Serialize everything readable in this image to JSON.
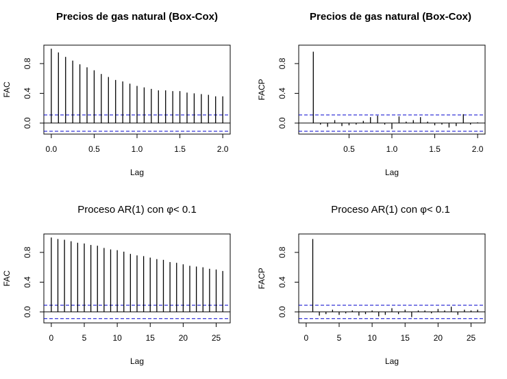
{
  "chart_data": [
    {
      "type": "bar",
      "kind": "acf",
      "title": "Precios de gas natural (Box-Cox)",
      "title_style": "bold",
      "xlabel": "Lag",
      "ylabel": "FAC",
      "x_ticks": [
        "0.0",
        "0.5",
        "1.0",
        "1.5",
        "2.0"
      ],
      "y_ticks": [
        "0.0",
        "0.4",
        "0.8"
      ],
      "xlim": [
        0,
        2.0
      ],
      "ylim": [
        -0.1,
        1.0
      ],
      "lags": [
        0.0,
        0.0833,
        0.1667,
        0.25,
        0.3333,
        0.4167,
        0.5,
        0.5833,
        0.6667,
        0.75,
        0.8333,
        0.9167,
        1.0,
        1.0833,
        1.1667,
        1.25,
        1.3333,
        1.4167,
        1.5,
        1.5833,
        1.6667,
        1.75,
        1.8333,
        1.9167,
        2.0
      ],
      "values": [
        1.0,
        0.95,
        0.89,
        0.84,
        0.79,
        0.75,
        0.71,
        0.66,
        0.62,
        0.58,
        0.56,
        0.53,
        0.5,
        0.48,
        0.46,
        0.44,
        0.44,
        0.43,
        0.43,
        0.41,
        0.4,
        0.39,
        0.38,
        0.36,
        0.36
      ],
      "conf_limit": 0.11,
      "grid": false
    },
    {
      "type": "bar",
      "kind": "pacf",
      "title": "Precios de gas natural (Box-Cox)",
      "title_style": "bold",
      "xlabel": "Lag",
      "ylabel": "FACP",
      "x_ticks": [
        "0.5",
        "1.0",
        "1.5",
        "2.0"
      ],
      "y_ticks": [
        "0.0",
        "0.4",
        "0.8"
      ],
      "xlim": [
        0,
        2.0
      ],
      "ylim": [
        -0.1,
        1.0
      ],
      "lags": [
        0.0833,
        0.1667,
        0.25,
        0.3333,
        0.4167,
        0.5,
        0.5833,
        0.6667,
        0.75,
        0.8333,
        0.9167,
        1.0,
        1.0833,
        1.1667,
        1.25,
        1.3333,
        1.4167,
        1.5,
        1.5833,
        1.6667,
        1.75,
        1.8333,
        1.9167,
        2.0
      ],
      "values": [
        0.96,
        -0.02,
        -0.05,
        0.04,
        -0.04,
        -0.03,
        -0.02,
        0.03,
        0.08,
        0.1,
        -0.02,
        -0.08,
        0.09,
        0.02,
        0.04,
        0.08,
        0.02,
        -0.03,
        -0.02,
        -0.06,
        -0.04,
        0.12,
        -0.02,
        0.01
      ],
      "conf_limit": 0.11,
      "grid": false
    },
    {
      "type": "bar",
      "kind": "acf",
      "title": "Proceso AR(1) con φ< 0.1",
      "title_style": "plain",
      "xlabel": "Lag",
      "ylabel": "FAC",
      "x_ticks": [
        "0",
        "5",
        "10",
        "15",
        "20",
        "25"
      ],
      "y_ticks": [
        "0.0",
        "0.4",
        "0.8"
      ],
      "xlim": [
        0,
        26
      ],
      "ylim": [
        -0.1,
        1.0
      ],
      "lags": [
        0,
        1,
        2,
        3,
        4,
        5,
        6,
        7,
        8,
        9,
        10,
        11,
        12,
        13,
        14,
        15,
        16,
        17,
        18,
        19,
        20,
        21,
        22,
        23,
        24,
        25,
        26
      ],
      "values": [
        1.0,
        0.98,
        0.97,
        0.95,
        0.93,
        0.92,
        0.9,
        0.89,
        0.86,
        0.84,
        0.83,
        0.81,
        0.78,
        0.76,
        0.75,
        0.73,
        0.71,
        0.7,
        0.67,
        0.66,
        0.64,
        0.62,
        0.61,
        0.6,
        0.58,
        0.57,
        0.55
      ],
      "conf_limit": 0.09,
      "grid": false
    },
    {
      "type": "bar",
      "kind": "pacf",
      "title": "Proceso AR(1) con φ< 0.1",
      "title_style": "plain",
      "xlabel": "Lag",
      "ylabel": "FACP",
      "x_ticks": [
        "0",
        "5",
        "10",
        "15",
        "20",
        "25"
      ],
      "y_ticks": [
        "0.0",
        "0.4",
        "0.8"
      ],
      "xlim": [
        0,
        26
      ],
      "ylim": [
        -0.1,
        1.0
      ],
      "lags": [
        1,
        2,
        3,
        4,
        5,
        6,
        7,
        8,
        9,
        10,
        11,
        12,
        13,
        14,
        15,
        16,
        17,
        18,
        19,
        20,
        21,
        22,
        23,
        24,
        25,
        26
      ],
      "values": [
        0.98,
        -0.05,
        -0.03,
        0.03,
        -0.04,
        -0.02,
        0.02,
        -0.05,
        -0.03,
        0.02,
        -0.06,
        -0.04,
        0.05,
        -0.03,
        0.03,
        -0.07,
        0.02,
        0.02,
        -0.02,
        0.04,
        0.02,
        0.07,
        -0.04,
        0.03,
        0.02,
        0.03
      ],
      "conf_limit": 0.09,
      "grid": false
    }
  ],
  "colors": {
    "bars": "#000000",
    "confidence_band": "#0000cc",
    "zero_line": "#000000"
  }
}
